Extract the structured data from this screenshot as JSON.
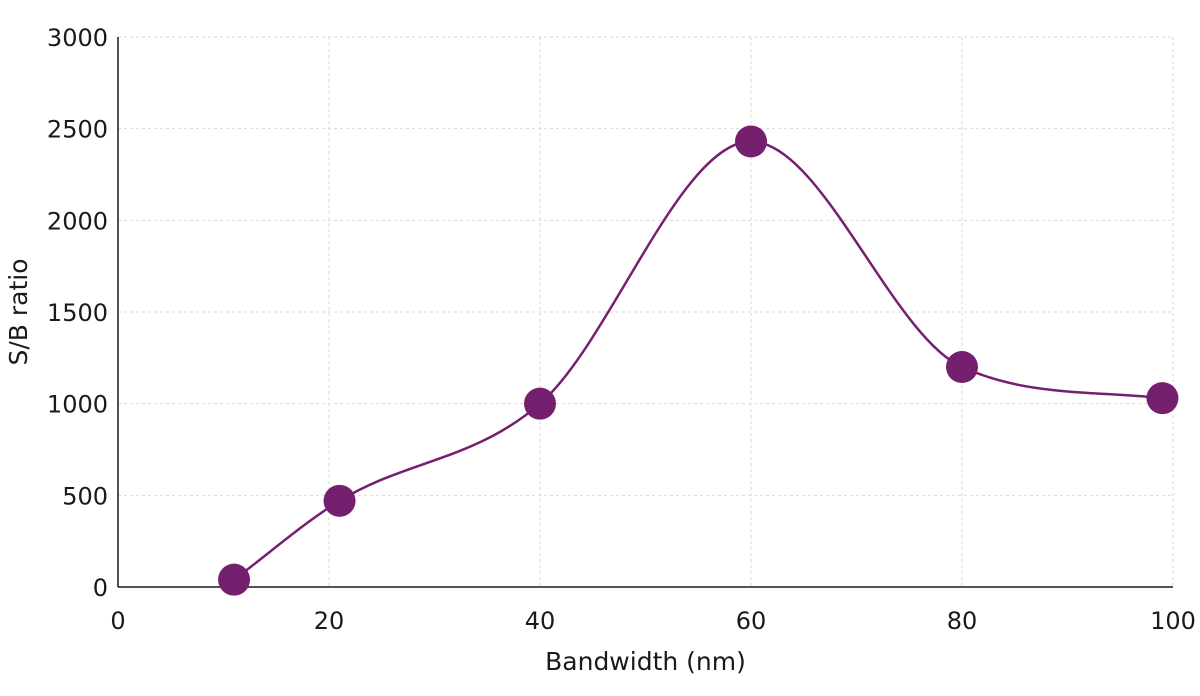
{
  "chart_data": {
    "type": "line",
    "title": "",
    "xlabel": "Bandwidth (nm)",
    "ylabel": "S/B ratio",
    "xlim": [
      0,
      100
    ],
    "ylim": [
      0,
      3000
    ],
    "x_ticks": [
      0,
      20,
      40,
      60,
      80,
      100
    ],
    "y_ticks": [
      0,
      500,
      1000,
      1500,
      2000,
      2500,
      3000
    ],
    "grid": true,
    "smooth": true,
    "series": [
      {
        "color": "#74206f",
        "points": [
          {
            "x": 11,
            "y": 40
          },
          {
            "x": 21,
            "y": 470
          },
          {
            "x": 40,
            "y": 1000
          },
          {
            "x": 60,
            "y": 2430
          },
          {
            "x": 80,
            "y": 1200
          },
          {
            "x": 99,
            "y": 1030
          }
        ]
      }
    ]
  }
}
